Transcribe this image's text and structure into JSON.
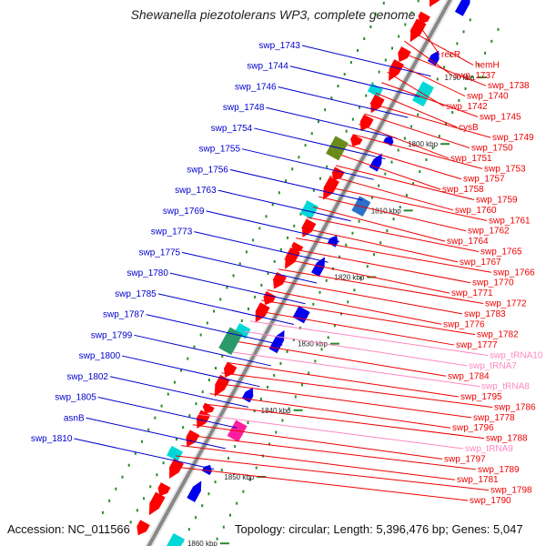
{
  "title": "Shewanella piezotolerans WP3, complete genome",
  "footer": {
    "accession": "Accession: NC_011566",
    "topology": "Topology: circular; Length: 5,396,476 bp; Genes: 5,047"
  },
  "colors": {
    "minus_label": "#0000cc",
    "plus_label": "#ee0000",
    "rna_label": "#ff88c0",
    "backbone": "#888888",
    "tick": "#2a8a2a"
  },
  "scale_labels": [
    "1790 kbp",
    "1800 kbp",
    "1810 kbp",
    "1820 kbp",
    "1830 kbp",
    "1840 kbp",
    "1850 kbp",
    "1860 kbp"
  ],
  "minus_labels": [
    "swp_1743",
    "swp_1744",
    "swp_1746",
    "swp_1748",
    "swp_1754",
    "swp_1755",
    "swp_1756",
    "swp_1763",
    "swp_1769",
    "swp_1773",
    "swp_1775",
    "swp_1780",
    "swp_1785",
    "swp_1787",
    "swp_1799",
    "swp_1800",
    "swp_1802",
    "swp_1805",
    "asnB",
    "swp_1810"
  ],
  "plus_labels": [
    "recR",
    "hemH",
    "swp_1737",
    "swp_1738",
    "swp_1740",
    "swp_1742",
    "swp_1745",
    "cysB",
    "swp_1749",
    "swp_1750",
    "swp_1751",
    "swp_1753",
    "swp_1757",
    "swp_1758",
    "swp_1759",
    "swp_1760",
    "swp_1761",
    "swp_1762",
    "swp_1764",
    "swp_1765",
    "swp_1767",
    "swp_1766",
    "swp_1770",
    "swp_1771",
    "swp_1772",
    "swp_1783",
    "swp_1776",
    "swp_1782",
    "swp_1777",
    "swp_tRNA10",
    "swp_tRNA7",
    "swp_1784",
    "swp_tRNA8",
    "swp_1795",
    "swp_1786",
    "swp_1778",
    "swp_1796",
    "swp_1788",
    "swp_tRNA9",
    "swp_1797",
    "swp_1789",
    "swp_1781",
    "swp_1798",
    "swp_1790"
  ],
  "rna_labels": [
    "swp_tRNA10",
    "swp_tRNA7",
    "swp_tRNA8",
    "swp_tRNA9"
  ]
}
